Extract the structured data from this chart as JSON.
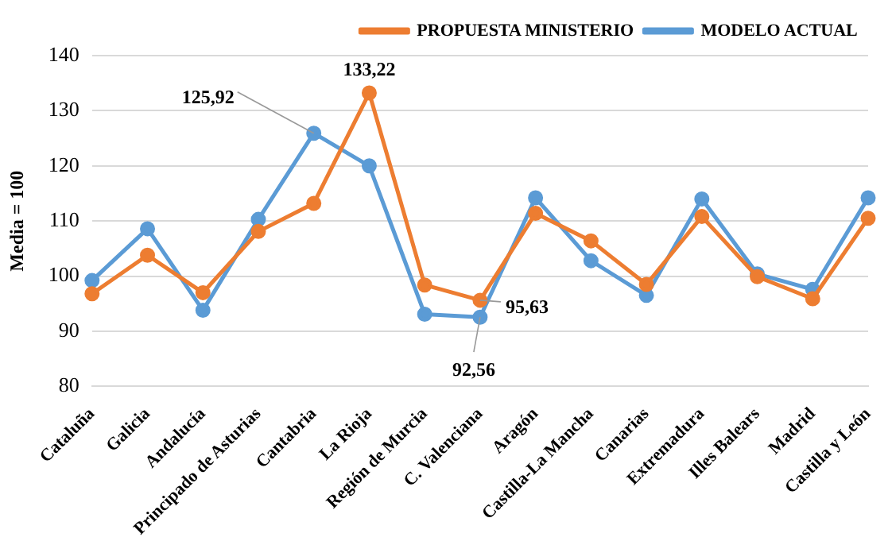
{
  "chart_data": {
    "type": "line",
    "ylabel": "Media = 100",
    "categories": [
      "Cataluña",
      "Galicia",
      "Andalucía",
      "Principado de Asturias",
      "Cantabria",
      "La Rioja",
      "Región de Murcia",
      "C. Valenciana",
      "Aragón",
      "Castilla-La Mancha",
      "Canarias",
      "Extremadura",
      "Illes Balears",
      "Madrid",
      "Castilla y León"
    ],
    "series": [
      {
        "name": "MODELO ACTUAL",
        "color": "#5b9bd5",
        "values": [
          99.2,
          108.6,
          93.8,
          110.3,
          125.92,
          120,
          93.1,
          92.56,
          114.2,
          102.8,
          96.5,
          114,
          100.4,
          97.6,
          114.2
        ]
      },
      {
        "name": "PROPUESTA MINISTERIO",
        "color": "#ed7d31",
        "values": [
          96.8,
          103.8,
          97,
          108.1,
          113.2,
          133.22,
          98.4,
          95.63,
          111.4,
          106.4,
          98.5,
          110.8,
          99.9,
          95.9,
          110.5
        ]
      }
    ],
    "ylim": [
      80,
      140
    ],
    "yticks": [
      80,
      90,
      100,
      110,
      120,
      130,
      140
    ],
    "grid": "y",
    "legend": "top right",
    "marker": "circle",
    "line_style": "solid",
    "annotations": [
      {
        "text": "125,92",
        "x": "Cantabria",
        "y": 125.92
      },
      {
        "text": "133,22",
        "x": "La Rioja",
        "y": 133.22
      },
      {
        "text": "92,56",
        "x": "C. Valenciana",
        "y": 92.56
      },
      {
        "text": "95,63",
        "x": "C. Valenciana",
        "y": 95.63
      }
    ]
  }
}
